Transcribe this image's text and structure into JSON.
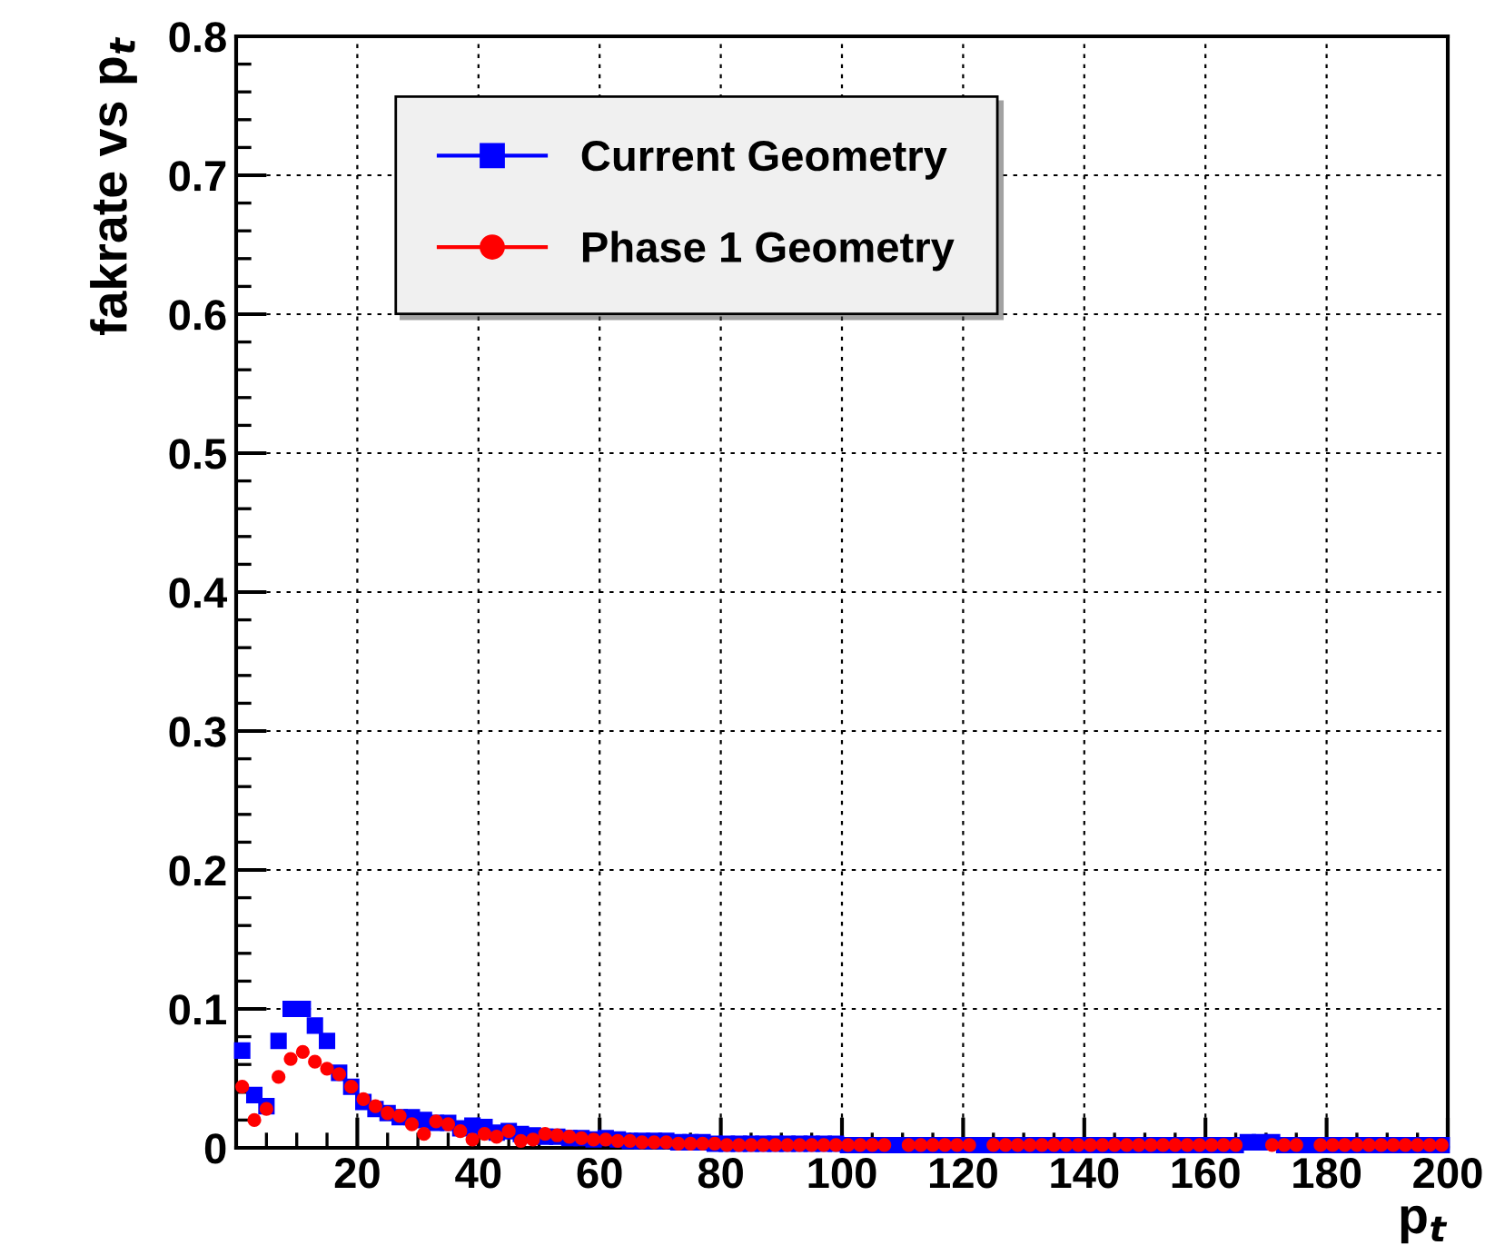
{
  "chart_data": {
    "type": "scatter",
    "ylabel": "fakrate vs p$_{t}$",
    "xlabel": "p$_{t}$",
    "x": [
      1,
      3,
      5,
      7,
      9,
      11,
      13,
      15,
      17,
      19,
      21,
      23,
      25,
      27,
      29,
      31,
      33,
      35,
      37,
      39,
      41,
      43,
      45,
      47,
      49,
      51,
      53,
      55,
      57,
      59,
      61,
      63,
      65,
      67,
      69,
      71,
      73,
      75,
      77,
      79,
      81,
      83,
      85,
      87,
      89,
      91,
      93,
      95,
      97,
      99,
      101,
      103,
      105,
      107,
      109,
      111,
      113,
      115,
      117,
      119,
      121,
      123,
      125,
      127,
      129,
      131,
      133,
      135,
      137,
      139,
      141,
      143,
      145,
      147,
      149,
      151,
      153,
      155,
      157,
      159,
      161,
      163,
      165,
      167,
      169,
      171,
      173,
      175,
      177,
      179,
      181,
      183,
      185,
      187,
      189,
      191,
      193,
      195,
      197,
      199
    ],
    "series": [
      {
        "name": "Current Geometry",
        "color": "#0000ff",
        "marker": "square",
        "values": [
          0.07,
          0.038,
          0.03,
          0.077,
          0.1,
          0.1,
          0.088,
          0.077,
          0.054,
          0.044,
          0.033,
          0.028,
          0.025,
          0.022,
          0.022,
          0.02,
          0.018,
          0.018,
          0.014,
          0.016,
          0.015,
          0.011,
          0.012,
          0.01,
          0.009,
          0.008,
          0.008,
          0.007,
          0.007,
          0.006,
          0.007,
          0.006,
          0.005,
          0.005,
          0.005,
          0.005,
          0.004,
          0.004,
          0.004,
          0.003,
          0.003,
          0.003,
          0.003,
          0.003,
          0.003,
          0.003,
          0.003,
          0.003,
          0.003,
          0.003,
          0.002,
          0.002,
          0.002,
          0.002,
          0.002,
          0.002,
          0.002,
          0.002,
          0.002,
          0.002,
          0.002,
          0.002,
          0.002,
          0.002,
          0.002,
          0.002,
          0.002,
          0.002,
          0.002,
          0.002,
          0.002,
          0.002,
          0.002,
          0.002,
          0.002,
          0.002,
          0.002,
          0.002,
          0.002,
          0.002,
          0.002,
          0.002,
          0.002,
          0.004,
          0.004,
          0.004,
          0.002,
          0.002,
          0.002,
          0.002,
          0.002,
          0.002,
          0.002,
          0.002,
          0.002,
          0.002,
          0.002,
          0.002,
          0.002,
          0.002
        ]
      },
      {
        "name": "Phase 1 Geometry",
        "color": "#ff0000",
        "marker": "circle",
        "values": [
          0.044,
          0.02,
          0.028,
          0.051,
          0.064,
          0.069,
          0.062,
          0.057,
          0.053,
          0.044,
          0.035,
          0.03,
          0.025,
          0.023,
          0.017,
          0.01,
          0.019,
          0.017,
          0.012,
          0.006,
          0.01,
          0.008,
          0.012,
          0.005,
          0.006,
          0.01,
          0.009,
          0.008,
          0.007,
          0.006,
          0.006,
          0.005,
          0.005,
          0.004,
          0.004,
          0.004,
          0.003,
          0.003,
          0.003,
          0.003,
          0.002,
          0.002,
          0.002,
          0.002,
          0.002,
          0.002,
          0.002,
          0.002,
          0.002,
          0.002,
          0.002,
          0.002,
          0.002,
          0.002,
          null,
          0.002,
          0.002,
          0.002,
          0.002,
          0.002,
          0.002,
          null,
          0.002,
          0.002,
          0.002,
          0.002,
          0.002,
          0.002,
          0.002,
          0.002,
          0.002,
          0.002,
          0.002,
          0.002,
          0.002,
          0.002,
          0.002,
          0.002,
          0.002,
          0.002,
          0.002,
          0.002,
          0.002,
          null,
          null,
          0.002,
          0.002,
          0.002,
          null,
          0.002,
          0.002,
          0.002,
          0.002,
          0.002,
          0.002,
          0.002,
          0.002,
          0.002,
          0.002,
          0.002
        ]
      }
    ],
    "xlim": [
      0,
      200
    ],
    "ylim": [
      0,
      0.8
    ],
    "xticks": [
      20,
      40,
      60,
      80,
      100,
      120,
      140,
      160,
      180,
      200
    ],
    "yticks": [
      0,
      0.1,
      0.2,
      0.3,
      0.4,
      0.5,
      0.6,
      0.7,
      0.8
    ],
    "grid": true,
    "legend": "top"
  }
}
